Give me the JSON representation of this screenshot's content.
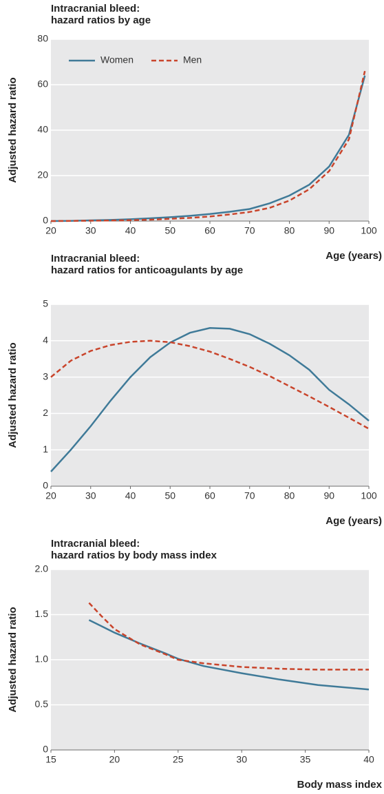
{
  "chart_data": [
    {
      "type": "line",
      "title": [
        "Intracranial bleed:",
        "hazard ratios by age"
      ],
      "ylabel": "Adjusted hazard ratio",
      "xlabel": "Age (years)",
      "xlim": [
        20,
        100
      ],
      "xticks": [
        20,
        30,
        40,
        50,
        60,
        70,
        80,
        90,
        100
      ],
      "ylim": [
        0,
        80
      ],
      "yticks": [
        0,
        20,
        40,
        60,
        80
      ],
      "grid": true,
      "legend": "upper left",
      "x": [
        20,
        25,
        30,
        35,
        40,
        45,
        50,
        55,
        60,
        65,
        70,
        75,
        80,
        85,
        90,
        95,
        99
      ],
      "series": [
        {
          "name": "Women",
          "color": "#3f7a98",
          "linestyle": "solid",
          "values": [
            0,
            0.1,
            0.3,
            0.5,
            0.8,
            1.2,
            1.7,
            2.3,
            3.1,
            4.1,
            5.3,
            7.8,
            11.2,
            16,
            24,
            38,
            64
          ]
        },
        {
          "name": "Men",
          "color": "#c9442b",
          "linestyle": "dashed",
          "values": [
            0,
            0.05,
            0.15,
            0.25,
            0.4,
            0.6,
            1,
            1.4,
            2,
            2.9,
            4,
            5.8,
            9,
            14,
            22,
            36,
            66
          ]
        }
      ]
    },
    {
      "type": "line",
      "title": [
        "Intracranial bleed:",
        "hazard ratios for anticoagulants by age"
      ],
      "ylabel": "Adjusted hazard ratio",
      "xlabel": "Age (years)",
      "xlim": [
        20,
        100
      ],
      "xticks": [
        20,
        30,
        40,
        50,
        60,
        70,
        80,
        90,
        100
      ],
      "ylim": [
        0,
        5
      ],
      "yticks": [
        0,
        1,
        2,
        3,
        4,
        5
      ],
      "grid": true,
      "x": [
        20,
        25,
        30,
        35,
        40,
        45,
        50,
        55,
        60,
        65,
        70,
        75,
        80,
        85,
        90,
        95,
        100
      ],
      "series": [
        {
          "name": "Women",
          "color": "#3f7a98",
          "linestyle": "solid",
          "values": [
            0.4,
            1.0,
            1.65,
            2.35,
            3.0,
            3.55,
            3.95,
            4.22,
            4.35,
            4.33,
            4.18,
            3.92,
            3.6,
            3.2,
            2.65,
            2.25,
            1.8
          ]
        },
        {
          "name": "Men",
          "color": "#c9442b",
          "linestyle": "dashed",
          "values": [
            3.0,
            3.45,
            3.72,
            3.88,
            3.97,
            4.0,
            3.96,
            3.85,
            3.7,
            3.5,
            3.28,
            3.03,
            2.75,
            2.47,
            2.18,
            1.88,
            1.58
          ]
        }
      ]
    },
    {
      "type": "line",
      "title": [
        "Intracranial bleed:",
        "hazard ratios by body mass index"
      ],
      "ylabel": "Adjusted hazard ratio",
      "xlabel": "Body mass index",
      "xlim": [
        15,
        40
      ],
      "xticks": [
        15,
        20,
        25,
        30,
        35,
        40
      ],
      "ylim": [
        0,
        2
      ],
      "yticks": [
        0,
        {
          "value": 0.5,
          "label": "0.5"
        },
        {
          "value": 1,
          "label": "1.0"
        },
        {
          "value": 1.5,
          "label": "1.5"
        },
        {
          "value": 2,
          "label": "2.0"
        }
      ],
      "grid": true,
      "x": [
        18,
        19,
        20,
        22,
        24,
        25,
        27,
        30,
        33,
        36,
        40
      ],
      "series": [
        {
          "name": "Women",
          "color": "#3f7a98",
          "linestyle": "solid",
          "values": [
            1.44,
            1.37,
            1.3,
            1.18,
            1.07,
            1.01,
            0.93,
            0.85,
            0.78,
            0.72,
            0.67
          ]
        },
        {
          "name": "Men",
          "color": "#c9442b",
          "linestyle": "dashed",
          "values": [
            1.63,
            1.48,
            1.34,
            1.17,
            1.06,
            1.0,
            0.96,
            0.92,
            0.9,
            0.89,
            0.89
          ]
        }
      ]
    }
  ]
}
